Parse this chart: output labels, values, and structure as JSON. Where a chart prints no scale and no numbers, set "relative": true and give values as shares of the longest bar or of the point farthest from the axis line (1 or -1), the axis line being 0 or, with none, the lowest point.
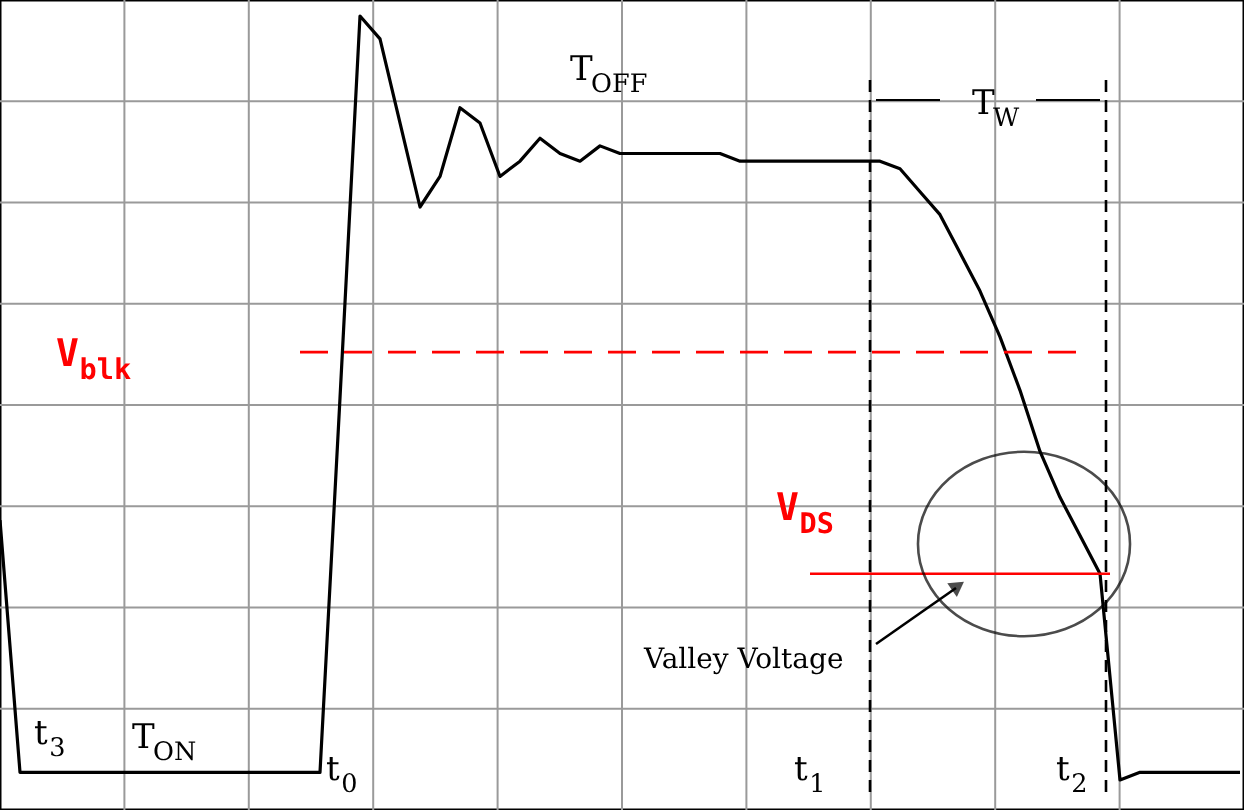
{
  "chart_data": {
    "type": "line",
    "relative": true,
    "grid": true,
    "categories": [
      null,
      null,
      null,
      null,
      null,
      null,
      null,
      null,
      null,
      null,
      null,
      null,
      null,
      null,
      null,
      null,
      null,
      null,
      null,
      null,
      null,
      null,
      null,
      null,
      null,
      null,
      null,
      null,
      null,
      null,
      null,
      null,
      null,
      null,
      null,
      null,
      null,
      null,
      null,
      null,
      null,
      null,
      null,
      null,
      null,
      null,
      null,
      null,
      null,
      null,
      null,
      null,
      null,
      null,
      null,
      null,
      null,
      null,
      null,
      null,
      null,
      null,
      null
    ],
    "series": [
      {
        "color": "#000000",
        "values": [
          0.34,
          0.01,
          0.01,
          0.01,
          0.01,
          0.01,
          0.01,
          0.01,
          0.01,
          0.01,
          0.01,
          0.01,
          0.01,
          0.01,
          0.01,
          0.01,
          0.01,
          0.5,
          1.0,
          0.97,
          0.86,
          0.75,
          0.79,
          0.88,
          0.86,
          0.79,
          0.81,
          0.84,
          0.82,
          0.81,
          0.83,
          0.82,
          0.82,
          0.82,
          0.82,
          0.82,
          0.82,
          0.81,
          0.81,
          0.81,
          0.81,
          0.81,
          0.81,
          0.81,
          0.81,
          0.8,
          0.77,
          0.74,
          0.69,
          0.64,
          0.58,
          0.51,
          0.43,
          0.37,
          0.32,
          0.27,
          0.0,
          0.01,
          0.01,
          0.01,
          0.01,
          0.01,
          0.01
        ]
      }
    ],
    "ref_lines": [
      {
        "axis": "y",
        "value": 0.56,
        "label": "V$_{blk}$",
        "color": "#ff0000",
        "line_style": "dashed"
      },
      {
        "axis": "y",
        "value": 0.27,
        "label": "V$_{DS}$",
        "color": "#ff0000",
        "line_style": "solid"
      }
    ],
    "annotations": [
      "T$_{OFF}$",
      "T$_{W}$",
      "Valley Voltage",
      "t$_{3}$",
      "T$_{ON}$",
      "t$_{0}$",
      "t$_{1}$",
      "t$_{2}$"
    ]
  }
}
